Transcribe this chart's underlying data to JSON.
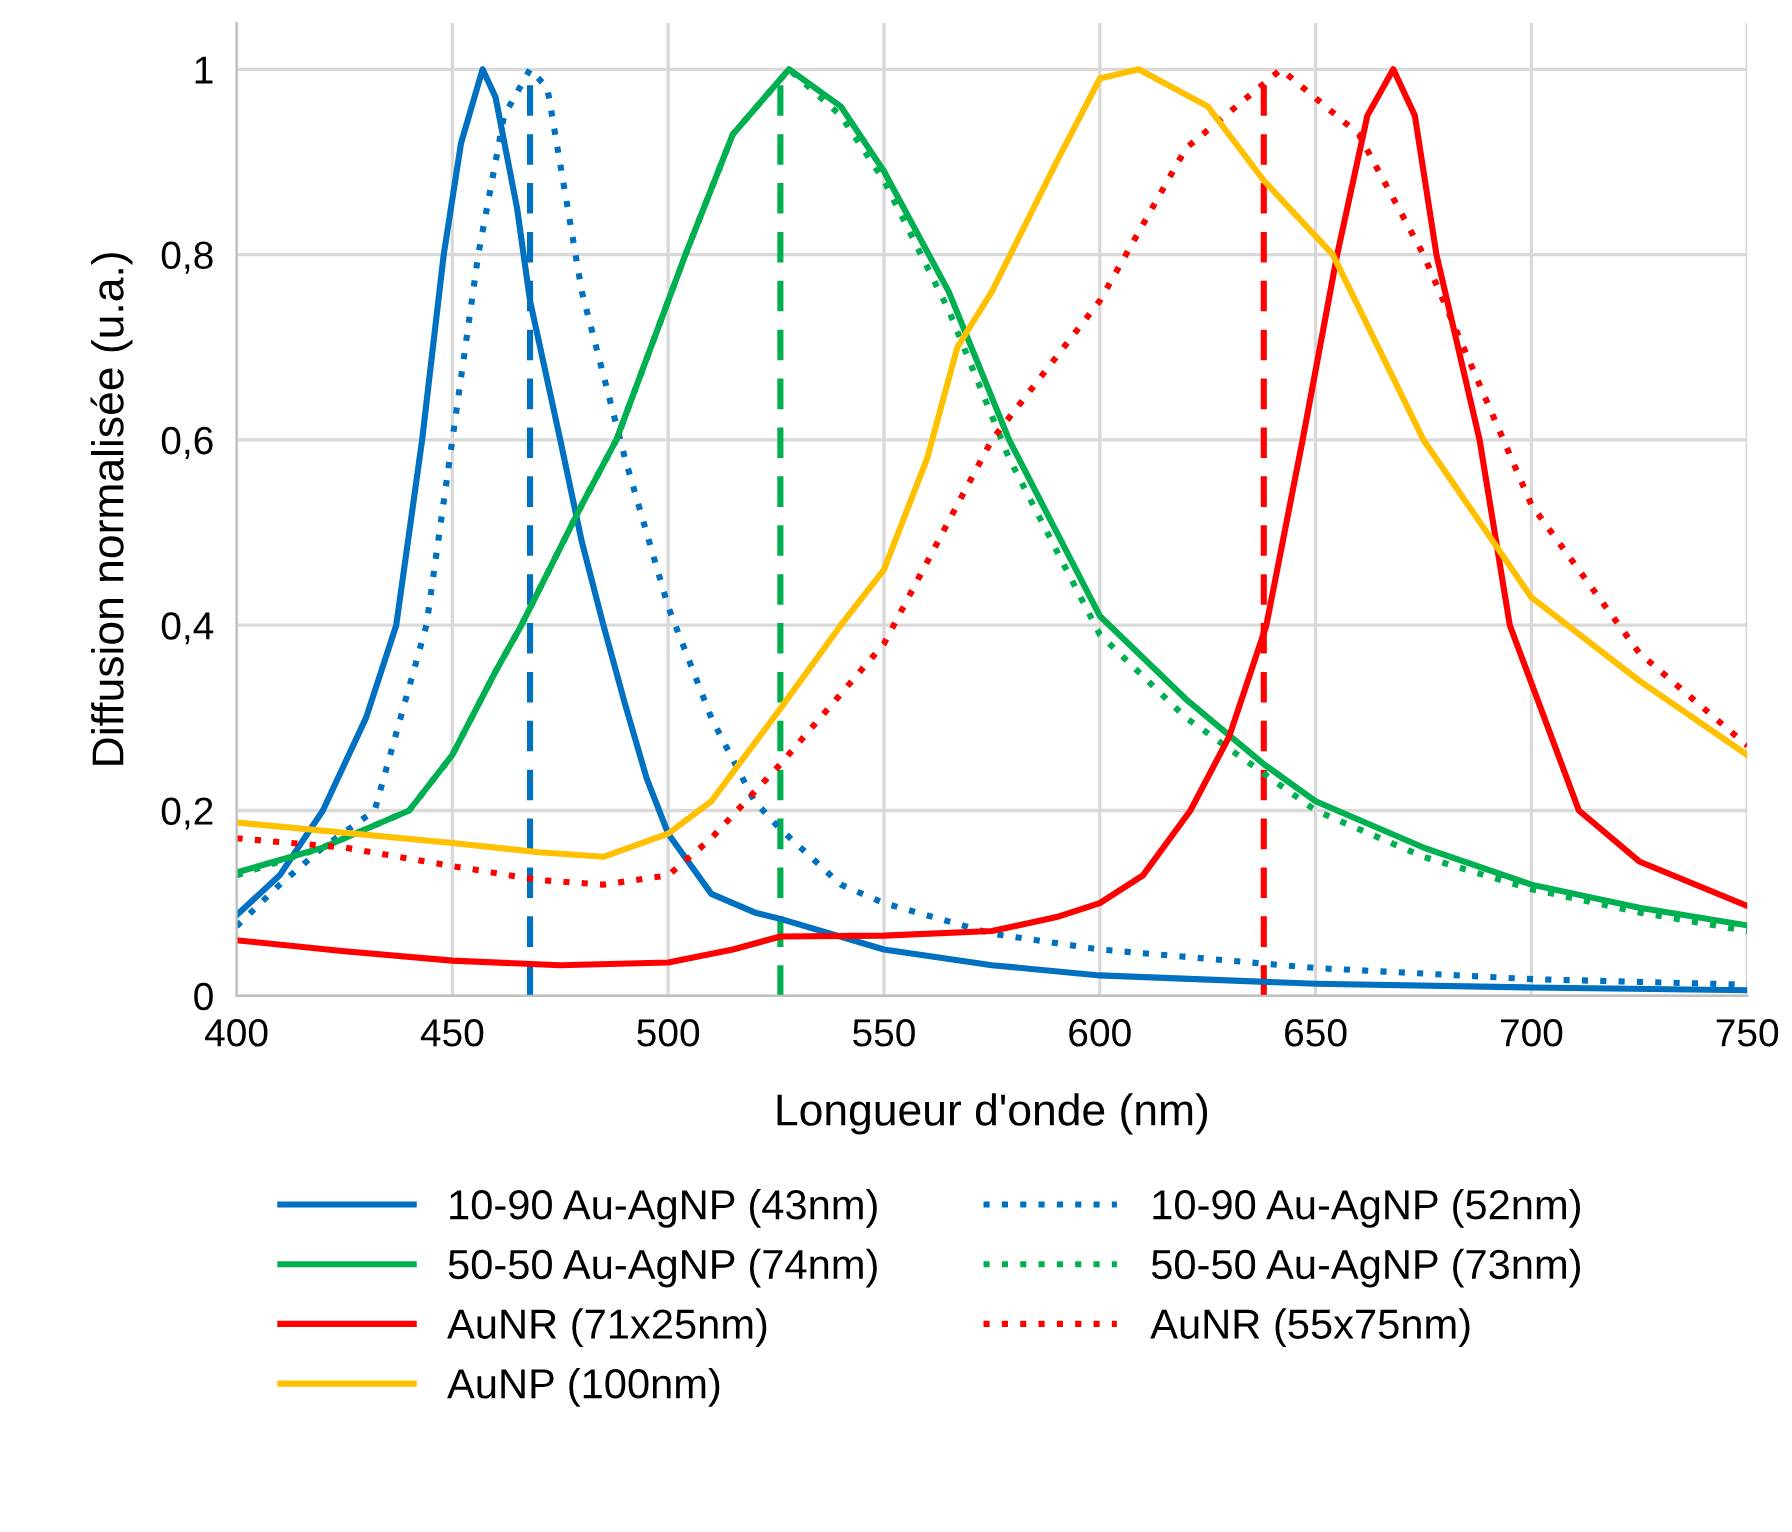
{
  "chart_data": {
    "type": "line",
    "xlabel": "Longueur d'onde (nm)",
    "ylabel": "Diffusion normalisée (u.a.)",
    "xlim": [
      400,
      750
    ],
    "xticks": [
      400,
      450,
      500,
      550,
      600,
      650,
      700,
      750
    ],
    "ylim": [
      0,
      1.05
    ],
    "yticks": [
      0,
      {
        "value": 0.2,
        "label": "0,2"
      },
      {
        "value": 0.4,
        "label": "0,4"
      },
      {
        "value": 0.6,
        "label": "0,6"
      },
      {
        "value": 0.8,
        "label": "0,8"
      },
      1
    ],
    "grid": true,
    "legend": "bottom",
    "marker": "none",
    "ref_lines": [
      {
        "axis": "x",
        "value": 468,
        "color": "#0070c0",
        "line_style": "dashed"
      },
      {
        "axis": "x",
        "value": 526,
        "color": "#00b050",
        "line_style": "dashed"
      },
      {
        "axis": "x",
        "value": 638,
        "color": "#ff0000",
        "line_style": "dashed"
      }
    ],
    "series": [
      {
        "name": "10-90 Au-AgNP (43nm)",
        "color": "#0070c0",
        "line_style": "solid",
        "x": [
          400,
          410,
          420,
          430,
          437,
          443,
          448,
          452,
          457,
          460,
          465,
          468,
          475,
          480,
          485,
          490,
          495,
          500,
          510,
          520,
          526,
          550,
          575,
          600,
          650,
          700,
          750
        ],
        "values": [
          0.087,
          0.13,
          0.2,
          0.3,
          0.4,
          0.6,
          0.8,
          0.92,
          1.0,
          0.97,
          0.85,
          0.75,
          0.6,
          0.49,
          0.4,
          0.315,
          0.235,
          0.175,
          0.11,
          0.09,
          0.083,
          0.05,
          0.033,
          0.022,
          0.013,
          0.009,
          0.006
        ]
      },
      {
        "name": "10-90 Au-AgNP (52nm)",
        "color": "#0070c0",
        "line_style": "dotted",
        "x": [
          400,
          410,
          420,
          432,
          444,
          450,
          456,
          462,
          468,
          472,
          480,
          490,
          500,
          510,
          520,
          526,
          540,
          550,
          575,
          600,
          650,
          700,
          750
        ],
        "values": [
          0.075,
          0.12,
          0.16,
          0.2,
          0.4,
          0.6,
          0.8,
          0.95,
          1.0,
          0.98,
          0.76,
          0.58,
          0.42,
          0.3,
          0.21,
          0.18,
          0.12,
          0.1,
          0.067,
          0.05,
          0.03,
          0.018,
          0.012
        ]
      },
      {
        "name": "50-50 Au-AgNP (74nm)",
        "color": "#00b050",
        "line_style": "solid",
        "x": [
          400,
          420,
          440,
          450,
          460,
          466,
          480,
          488,
          504,
          515,
          528,
          540,
          550,
          565,
          579,
          600,
          620,
          638,
          650,
          675,
          700,
          725,
          750
        ],
        "values": [
          0.133,
          0.16,
          0.2,
          0.26,
          0.35,
          0.4,
          0.53,
          0.6,
          0.8,
          0.93,
          1.0,
          0.96,
          0.89,
          0.76,
          0.6,
          0.41,
          0.32,
          0.25,
          0.21,
          0.16,
          0.12,
          0.095,
          0.076
        ]
      },
      {
        "name": "50-50 Au-AgNP (73nm)",
        "color": "#00b050",
        "line_style": "dotted",
        "x": [
          400,
          420,
          440,
          450,
          460,
          466,
          480,
          488,
          504,
          515,
          528,
          540,
          550,
          565,
          579,
          600,
          620,
          638,
          650,
          675,
          700,
          725,
          750
        ],
        "values": [
          0.13,
          0.16,
          0.2,
          0.26,
          0.35,
          0.4,
          0.53,
          0.6,
          0.8,
          0.93,
          1.0,
          0.95,
          0.88,
          0.74,
          0.58,
          0.39,
          0.3,
          0.24,
          0.2,
          0.15,
          0.115,
          0.09,
          0.07
        ]
      },
      {
        "name": "AuNR (71x25nm)",
        "color": "#ff0000",
        "line_style": "solid",
        "x": [
          400,
          425,
          450,
          475,
          500,
          515,
          526,
          550,
          575,
          590,
          600,
          610,
          621,
          630,
          638.6,
          647,
          655,
          662,
          668,
          673,
          678,
          688,
          695,
          711,
          725,
          750
        ],
        "values": [
          0.06,
          0.048,
          0.038,
          0.033,
          0.036,
          0.05,
          0.064,
          0.065,
          0.07,
          0.085,
          0.1,
          0.13,
          0.2,
          0.28,
          0.4,
          0.6,
          0.8,
          0.95,
          1.0,
          0.95,
          0.8,
          0.6,
          0.4,
          0.2,
          0.145,
          0.097
        ]
      },
      {
        "name": "AuNR (55x75nm)",
        "color": "#ff0000",
        "line_style": "dotted",
        "x": [
          400,
          425,
          450,
          470,
          485,
          500,
          510,
          526,
          550,
          567,
          575,
          600,
          620,
          642,
          660,
          675,
          700,
          725,
          750
        ],
        "values": [
          0.17,
          0.16,
          0.14,
          0.125,
          0.12,
          0.13,
          0.17,
          0.25,
          0.38,
          0.53,
          0.6,
          0.75,
          0.915,
          1.0,
          0.93,
          0.8,
          0.53,
          0.37,
          0.27
        ]
      },
      {
        "name": "AuNP (100nm)",
        "color": "#ffc000",
        "line_style": "solid",
        "x": [
          400,
          450,
          470,
          485,
          500,
          510,
          526,
          540,
          550,
          560,
          567,
          575,
          590,
          600,
          609,
          625,
          638,
          650,
          654,
          675,
          700,
          725,
          750
        ],
        "values": [
          0.187,
          0.165,
          0.155,
          0.15,
          0.175,
          0.21,
          0.31,
          0.4,
          0.46,
          0.58,
          0.7,
          0.76,
          0.9,
          0.99,
          1.0,
          0.96,
          0.88,
          0.82,
          0.8,
          0.6,
          0.43,
          0.34,
          0.26
        ]
      }
    ]
  }
}
